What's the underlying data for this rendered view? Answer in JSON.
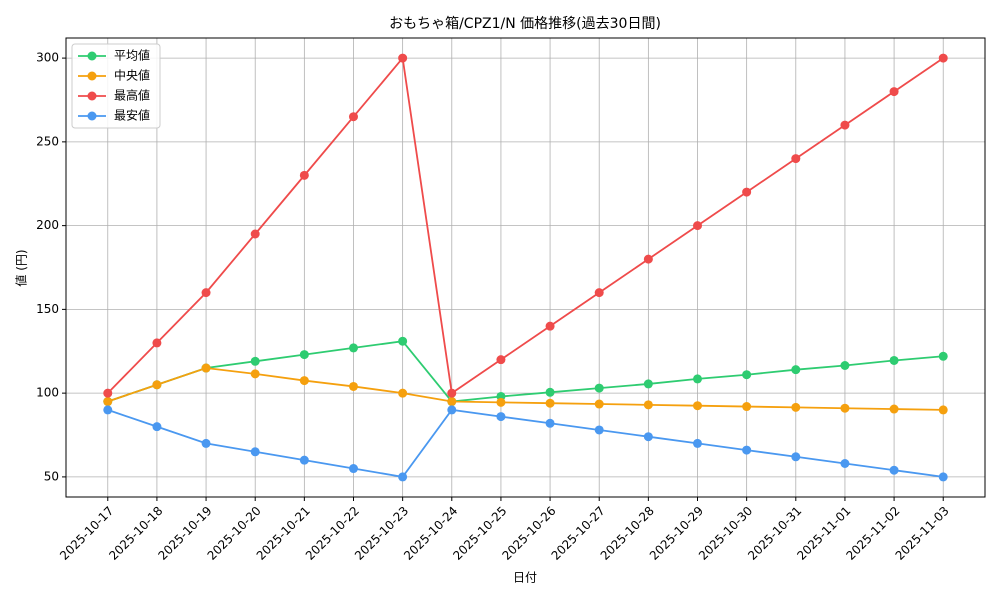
{
  "chart_data": {
    "type": "line",
    "title": "おもちゃ箱/CPZ1/N 価格推移(過去30日間)",
    "x_label": "日付",
    "y_label": "値 (円)",
    "categories": [
      "2025-10-17",
      "2025-10-18",
      "2025-10-19",
      "2025-10-20",
      "2025-10-21",
      "2025-10-22",
      "2025-10-23",
      "2025-10-24",
      "2025-10-25",
      "2025-10-26",
      "2025-10-27",
      "2025-10-28",
      "2025-10-29",
      "2025-10-30",
      "2025-10-31",
      "2025-11-01",
      "2025-11-02",
      "2025-11-03"
    ],
    "series": [
      {
        "name": "平均値",
        "color": "#2ecc71",
        "values": [
          95,
          105,
          115,
          119,
          123,
          127,
          131,
          95,
          98,
          100.5,
          103,
          105.5,
          108.5,
          111,
          114,
          116.5,
          119.5,
          122
        ]
      },
      {
        "name": "中央値",
        "color": "#f5a00e",
        "values": [
          95,
          105,
          115,
          111.5,
          107.5,
          104,
          100,
          95,
          94.5,
          94,
          93.5,
          93,
          92.5,
          92,
          91.5,
          91,
          90.5,
          90
        ]
      },
      {
        "name": "最高値",
        "color": "#ef4b4b",
        "values": [
          100,
          130,
          160,
          195,
          230,
          265,
          300,
          100,
          120,
          140,
          160,
          180,
          200,
          220,
          240,
          260,
          280,
          300
        ]
      },
      {
        "name": "最安値",
        "color": "#4a98f0",
        "values": [
          90,
          80,
          70,
          65,
          60,
          55,
          50,
          90,
          86,
          82,
          78,
          74,
          70,
          66,
          62,
          58,
          54,
          50
        ]
      }
    ],
    "ylim": [
      38,
      312
    ],
    "yticks": [
      50,
      100,
      150,
      200,
      250,
      300
    ],
    "grid": true,
    "legend": "upper-left"
  }
}
